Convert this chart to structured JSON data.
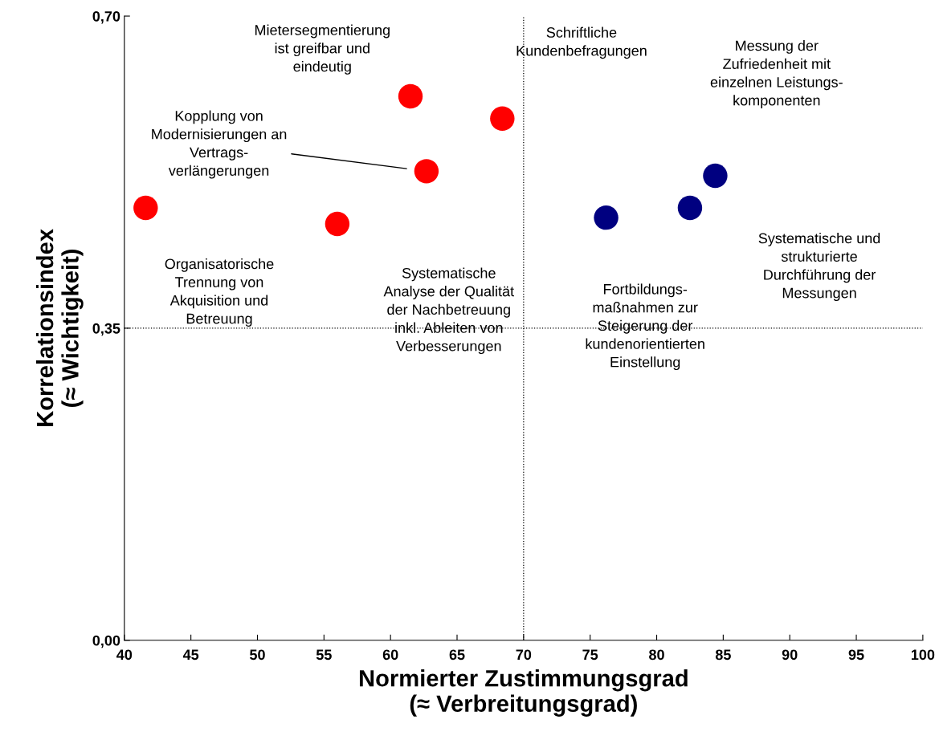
{
  "chart_data": {
    "type": "scatter",
    "xlabel": "Normierter Zustimmungsgrad\n(≈ Verbreitungsgrad)",
    "ylabel": "Korrelationsindex\n(≈ Wichtigkeit)",
    "series": [
      {
        "color": "#ff0000",
        "x": [
          41.6,
          61.5,
          68.4,
          62.7,
          56.0
        ],
        "values": [
          0.485,
          0.61,
          0.585,
          0.526,
          0.467
        ]
      },
      {
        "color": "#000080",
        "x": [
          76.2,
          82.5,
          84.4
        ],
        "values": [
          0.474,
          0.485,
          0.521
        ]
      }
    ],
    "xlim": [
      40,
      100
    ],
    "xticks": [
      40,
      45,
      50,
      55,
      60,
      65,
      70,
      75,
      80,
      85,
      90,
      95,
      100
    ],
    "ylim": [
      0,
      0.7
    ],
    "yticks": [
      {
        "value": 0,
        "label": "0,00"
      },
      {
        "value": 0.35,
        "label": "0,35"
      },
      {
        "value": 0.7,
        "label": "0,70"
      }
    ],
    "ref_lines": [
      {
        "axis": "x",
        "value": 70,
        "line_style": "dotted",
        "color": "#000000"
      },
      {
        "axis": "y",
        "value": 0.35,
        "line_style": "dotted",
        "color": "#000000"
      }
    ],
    "grid": false,
    "marker": "circle",
    "annotations": [
      "Organisatorische\nTrennung von\nAkquisition und\nBetreuung",
      "Mietersegmentierung\nist greifbar und\neindeutig",
      "Schriftliche\nKundenbefragungen",
      "Kopplung von\nModernisierungen an\nVertrags-\nverlängerungen",
      "Systematische\nAnalyse der Qualität\nder Nachbetreuung\ninkl. Ableiten von\nVerbesserungen",
      "Fortbildungs-\nmaßnahmen zur\nSteigerung der\nkundenorientierten\nEinstellung",
      "Systematische und\nstrukturierte\nDurchführung der\nMessungen",
      "Messung der\nZufriedenheit mit\neinzelnen Leistungs-\nkomponenten"
    ]
  }
}
